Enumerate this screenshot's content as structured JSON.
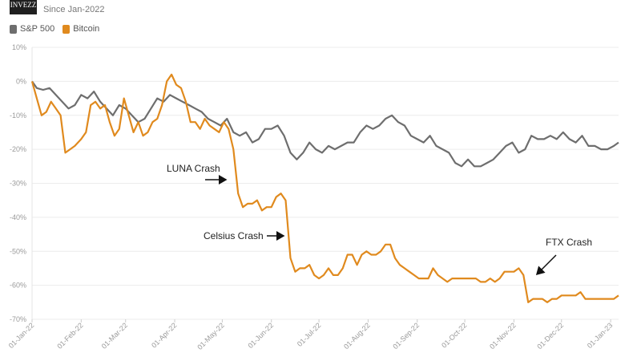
{
  "logo_text": "INVEZZ",
  "subtitle": "Since Jan-2022",
  "chart_data": {
    "type": "line",
    "ylim": [
      -70,
      10
    ],
    "yticks": [
      10,
      0,
      -10,
      -20,
      -30,
      -40,
      -50,
      -60,
      -70
    ],
    "ytick_labels": [
      "10%",
      "0%",
      "-10%",
      "-20%",
      "-30%",
      "-40%",
      "-50%",
      "-60%",
      "-70%"
    ],
    "xlim": [
      "2022-01-01",
      "2023-01-06"
    ],
    "xticks": [
      "2022-01-01",
      "2022-02-01",
      "2022-03-01",
      "2022-04-01",
      "2022-05-01",
      "2022-06-01",
      "2022-07-01",
      "2022-08-01",
      "2022-09-01",
      "2022-10-01",
      "2022-11-01",
      "2022-12-01",
      "2023-01-01"
    ],
    "xtick_labels": [
      "01-Jan-22",
      "01-Feb-22",
      "01-Mar-22",
      "01-Apr-22",
      "01-May-22",
      "01-Jun-22",
      "01-Jul-22",
      "01-Aug-22",
      "01-Sep-22",
      "01-Oct-22",
      "01-Nov-22",
      "01-Dec-22",
      "01-Jan-23"
    ],
    "grid": true,
    "legend_position": "top-left",
    "series": [
      {
        "name": "S&P 500",
        "color": "#6e6e6e",
        "points": [
          [
            "2022-01-01",
            0
          ],
          [
            "2022-01-04",
            -2
          ],
          [
            "2022-01-08",
            -2.5
          ],
          [
            "2022-01-12",
            -2
          ],
          [
            "2022-01-16",
            -4
          ],
          [
            "2022-01-20",
            -6
          ],
          [
            "2022-01-24",
            -8
          ],
          [
            "2022-01-28",
            -7
          ],
          [
            "2022-02-01",
            -4
          ],
          [
            "2022-02-05",
            -5
          ],
          [
            "2022-02-09",
            -3
          ],
          [
            "2022-02-13",
            -6
          ],
          [
            "2022-02-17",
            -8
          ],
          [
            "2022-02-21",
            -10
          ],
          [
            "2022-02-25",
            -7
          ],
          [
            "2022-03-01",
            -8
          ],
          [
            "2022-03-05",
            -10
          ],
          [
            "2022-03-09",
            -12
          ],
          [
            "2022-03-13",
            -11
          ],
          [
            "2022-03-17",
            -8
          ],
          [
            "2022-03-21",
            -5
          ],
          [
            "2022-03-25",
            -6
          ],
          [
            "2022-03-29",
            -4
          ],
          [
            "2022-04-02",
            -5
          ],
          [
            "2022-04-06",
            -6
          ],
          [
            "2022-04-10",
            -7
          ],
          [
            "2022-04-14",
            -8
          ],
          [
            "2022-04-18",
            -9
          ],
          [
            "2022-04-22",
            -11
          ],
          [
            "2022-04-26",
            -12
          ],
          [
            "2022-04-30",
            -13
          ],
          [
            "2022-05-04",
            -11
          ],
          [
            "2022-05-08",
            -15
          ],
          [
            "2022-05-12",
            -16
          ],
          [
            "2022-05-16",
            -15
          ],
          [
            "2022-05-20",
            -18
          ],
          [
            "2022-05-24",
            -17
          ],
          [
            "2022-05-28",
            -14
          ],
          [
            "2022-06-01",
            -14
          ],
          [
            "2022-06-05",
            -13
          ],
          [
            "2022-06-09",
            -16
          ],
          [
            "2022-06-13",
            -21
          ],
          [
            "2022-06-17",
            -23
          ],
          [
            "2022-06-21",
            -21
          ],
          [
            "2022-06-25",
            -18
          ],
          [
            "2022-06-29",
            -20
          ],
          [
            "2022-07-03",
            -21
          ],
          [
            "2022-07-07",
            -19
          ],
          [
            "2022-07-11",
            -20
          ],
          [
            "2022-07-15",
            -19
          ],
          [
            "2022-07-19",
            -18
          ],
          [
            "2022-07-23",
            -18
          ],
          [
            "2022-07-27",
            -15
          ],
          [
            "2022-07-31",
            -13
          ],
          [
            "2022-08-04",
            -14
          ],
          [
            "2022-08-08",
            -13
          ],
          [
            "2022-08-12",
            -11
          ],
          [
            "2022-08-16",
            -10
          ],
          [
            "2022-08-20",
            -12
          ],
          [
            "2022-08-24",
            -13
          ],
          [
            "2022-08-28",
            -16
          ],
          [
            "2022-09-01",
            -17
          ],
          [
            "2022-09-05",
            -18
          ],
          [
            "2022-09-09",
            -16
          ],
          [
            "2022-09-13",
            -19
          ],
          [
            "2022-09-17",
            -20
          ],
          [
            "2022-09-21",
            -21
          ],
          [
            "2022-09-25",
            -24
          ],
          [
            "2022-09-29",
            -25
          ],
          [
            "2022-10-03",
            -23
          ],
          [
            "2022-10-07",
            -25
          ],
          [
            "2022-10-11",
            -25
          ],
          [
            "2022-10-15",
            -24
          ],
          [
            "2022-10-19",
            -23
          ],
          [
            "2022-10-23",
            -21
          ],
          [
            "2022-10-27",
            -19
          ],
          [
            "2022-10-31",
            -18
          ],
          [
            "2022-11-04",
            -21
          ],
          [
            "2022-11-08",
            -20
          ],
          [
            "2022-11-12",
            -16
          ],
          [
            "2022-11-16",
            -17
          ],
          [
            "2022-11-20",
            -17
          ],
          [
            "2022-11-24",
            -16
          ],
          [
            "2022-11-28",
            -17
          ],
          [
            "2022-12-02",
            -15
          ],
          [
            "2022-12-06",
            -17
          ],
          [
            "2022-12-10",
            -18
          ],
          [
            "2022-12-14",
            -16
          ],
          [
            "2022-12-18",
            -19
          ],
          [
            "2022-12-22",
            -19
          ],
          [
            "2022-12-26",
            -20
          ],
          [
            "2022-12-30",
            -20
          ],
          [
            "2023-01-03",
            -19
          ],
          [
            "2023-01-06",
            -18
          ]
        ]
      },
      {
        "name": "Bitcoin",
        "color": "#e08a1e",
        "points": [
          [
            "2022-01-01",
            0
          ],
          [
            "2022-01-04",
            -5
          ],
          [
            "2022-01-07",
            -10
          ],
          [
            "2022-01-10",
            -9
          ],
          [
            "2022-01-13",
            -6
          ],
          [
            "2022-01-16",
            -8
          ],
          [
            "2022-01-19",
            -10
          ],
          [
            "2022-01-22",
            -21
          ],
          [
            "2022-01-25",
            -20
          ],
          [
            "2022-01-28",
            -19
          ],
          [
            "2022-02-01",
            -17
          ],
          [
            "2022-02-04",
            -15
          ],
          [
            "2022-02-07",
            -7
          ],
          [
            "2022-02-10",
            -6
          ],
          [
            "2022-02-13",
            -8
          ],
          [
            "2022-02-16",
            -7
          ],
          [
            "2022-02-19",
            -12
          ],
          [
            "2022-02-22",
            -16
          ],
          [
            "2022-02-25",
            -14
          ],
          [
            "2022-02-28",
            -5
          ],
          [
            "2022-03-03",
            -10
          ],
          [
            "2022-03-06",
            -15
          ],
          [
            "2022-03-09",
            -12
          ],
          [
            "2022-03-12",
            -16
          ],
          [
            "2022-03-15",
            -15
          ],
          [
            "2022-03-18",
            -12
          ],
          [
            "2022-03-21",
            -11
          ],
          [
            "2022-03-24",
            -7
          ],
          [
            "2022-03-27",
            0
          ],
          [
            "2022-03-30",
            2
          ],
          [
            "2022-04-02",
            -1
          ],
          [
            "2022-04-05",
            -2
          ],
          [
            "2022-04-08",
            -6
          ],
          [
            "2022-04-11",
            -12
          ],
          [
            "2022-04-14",
            -12
          ],
          [
            "2022-04-17",
            -14
          ],
          [
            "2022-04-20",
            -11
          ],
          [
            "2022-04-23",
            -13
          ],
          [
            "2022-04-26",
            -14
          ],
          [
            "2022-04-29",
            -15
          ],
          [
            "2022-05-02",
            -12
          ],
          [
            "2022-05-05",
            -14
          ],
          [
            "2022-05-08",
            -20
          ],
          [
            "2022-05-11",
            -33
          ],
          [
            "2022-05-14",
            -37
          ],
          [
            "2022-05-17",
            -36
          ],
          [
            "2022-05-20",
            -36
          ],
          [
            "2022-05-23",
            -35
          ],
          [
            "2022-05-26",
            -38
          ],
          [
            "2022-05-29",
            -37
          ],
          [
            "2022-06-01",
            -37
          ],
          [
            "2022-06-04",
            -34
          ],
          [
            "2022-06-07",
            -33
          ],
          [
            "2022-06-10",
            -35
          ],
          [
            "2022-06-13",
            -52
          ],
          [
            "2022-06-16",
            -56
          ],
          [
            "2022-06-19",
            -55
          ],
          [
            "2022-06-22",
            -55
          ],
          [
            "2022-06-25",
            -54
          ],
          [
            "2022-06-28",
            -57
          ],
          [
            "2022-07-01",
            -58
          ],
          [
            "2022-07-04",
            -57
          ],
          [
            "2022-07-07",
            -55
          ],
          [
            "2022-07-10",
            -57
          ],
          [
            "2022-07-13",
            -57
          ],
          [
            "2022-07-16",
            -55
          ],
          [
            "2022-07-19",
            -51
          ],
          [
            "2022-07-22",
            -51
          ],
          [
            "2022-07-25",
            -54
          ],
          [
            "2022-07-28",
            -51
          ],
          [
            "2022-07-31",
            -50
          ],
          [
            "2022-08-03",
            -51
          ],
          [
            "2022-08-06",
            -51
          ],
          [
            "2022-08-09",
            -50
          ],
          [
            "2022-08-12",
            -48
          ],
          [
            "2022-08-15",
            -48
          ],
          [
            "2022-08-18",
            -52
          ],
          [
            "2022-08-21",
            -54
          ],
          [
            "2022-08-24",
            -55
          ],
          [
            "2022-08-27",
            -56
          ],
          [
            "2022-08-30",
            -57
          ],
          [
            "2022-09-02",
            -58
          ],
          [
            "2022-09-05",
            -58
          ],
          [
            "2022-09-08",
            -58
          ],
          [
            "2022-09-11",
            -55
          ],
          [
            "2022-09-14",
            -57
          ],
          [
            "2022-09-17",
            -58
          ],
          [
            "2022-09-20",
            -59
          ],
          [
            "2022-09-23",
            -58
          ],
          [
            "2022-09-26",
            -58
          ],
          [
            "2022-09-29",
            -58
          ],
          [
            "2022-10-02",
            -58
          ],
          [
            "2022-10-05",
            -58
          ],
          [
            "2022-10-08",
            -58
          ],
          [
            "2022-10-11",
            -59
          ],
          [
            "2022-10-14",
            -59
          ],
          [
            "2022-10-17",
            -58
          ],
          [
            "2022-10-20",
            -59
          ],
          [
            "2022-10-23",
            -58
          ],
          [
            "2022-10-26",
            -56
          ],
          [
            "2022-10-29",
            -56
          ],
          [
            "2022-11-01",
            -56
          ],
          [
            "2022-11-04",
            -55
          ],
          [
            "2022-11-07",
            -57
          ],
          [
            "2022-11-10",
            -65
          ],
          [
            "2022-11-13",
            -64
          ],
          [
            "2022-11-16",
            -64
          ],
          [
            "2022-11-19",
            -64
          ],
          [
            "2022-11-22",
            -65
          ],
          [
            "2022-11-25",
            -64
          ],
          [
            "2022-11-28",
            -64
          ],
          [
            "2022-12-01",
            -63
          ],
          [
            "2022-12-04",
            -63
          ],
          [
            "2022-12-07",
            -63
          ],
          [
            "2022-12-10",
            -63
          ],
          [
            "2022-12-13",
            -62
          ],
          [
            "2022-12-16",
            -64
          ],
          [
            "2022-12-19",
            -64
          ],
          [
            "2022-12-22",
            -64
          ],
          [
            "2022-12-25",
            -64
          ],
          [
            "2022-12-28",
            -64
          ],
          [
            "2022-12-31",
            -64
          ],
          [
            "2023-01-03",
            -64
          ],
          [
            "2023-01-06",
            -63
          ]
        ]
      }
    ],
    "annotations": [
      "LUNA Crash",
      "Celsius Crash",
      "FTX Crash"
    ]
  }
}
